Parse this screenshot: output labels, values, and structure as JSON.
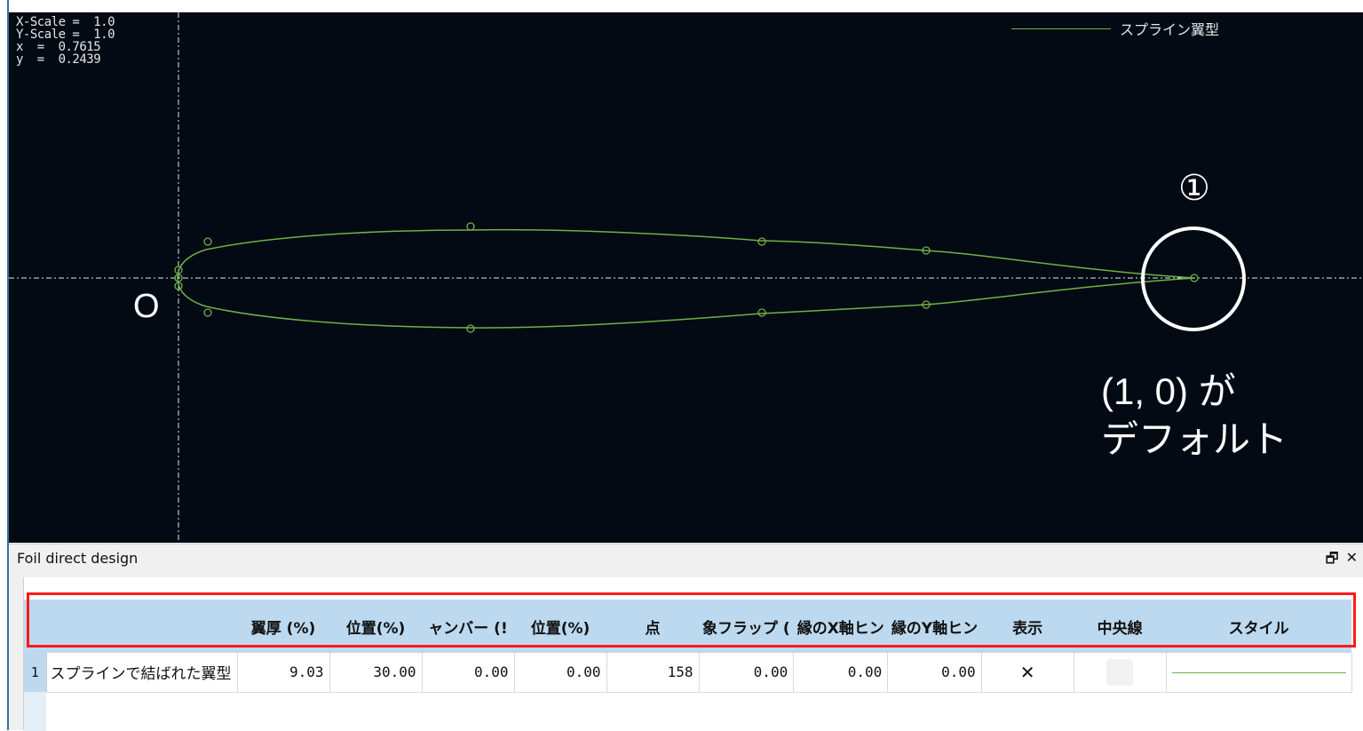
{
  "readout": {
    "x_scale": "X-Scale =  1.0",
    "y_scale": "Y-Scale =  1.0",
    "x": "x  =  0.7615",
    "y": "y  =  0.2439"
  },
  "legend": {
    "label": "スプライン翼型",
    "color": "#6fb04a"
  },
  "annotations": {
    "origin": "O",
    "marker_number": "①",
    "note_line1": "(1, 0) が",
    "note_line2": "デフォルト"
  },
  "colors": {
    "plot_bg": "#030a13",
    "curve": "#6fb04a",
    "axis": "#e6e6e6",
    "header_bg": "#bcd9ef",
    "highlight": "#ff1a1a"
  },
  "panel": {
    "title": "Foil direct design",
    "restore_icon": "restore-window-icon",
    "close_icon": "close-icon"
  },
  "table": {
    "columns": [
      "翼厚 (%)",
      "位置(%)",
      "ャンバー (!",
      "位置(%)",
      "点",
      "象フラップ (",
      "縁のX軸ヒン",
      "縁のY軸ヒン",
      "表示",
      "中央線",
      "スタイル"
    ],
    "rows": [
      {
        "index": "1",
        "name": "スプラインで結ばれた翼型",
        "thickness": "9.03",
        "thickness_pos": "30.00",
        "camber": "0.00",
        "camber_pos": "0.00",
        "points": "158",
        "flap": "0.00",
        "hinge_x": "0.00",
        "hinge_y": "0.00",
        "visible": "✕",
        "centerline": "",
        "style": "solid"
      }
    ]
  }
}
